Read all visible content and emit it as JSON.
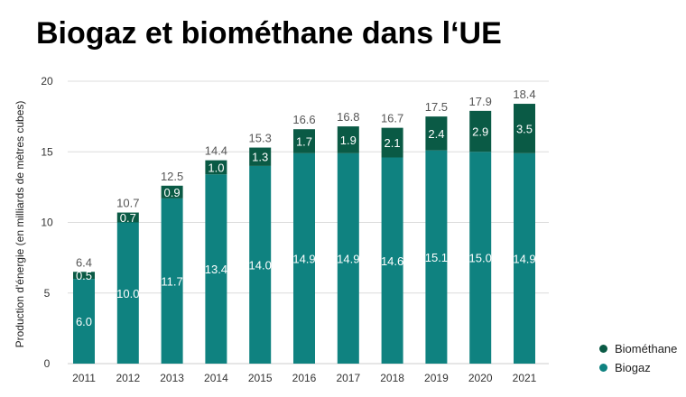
{
  "title": "Biogaz et biométhane dans l‘UE",
  "chart_data": {
    "type": "bar",
    "stacked": true,
    "categories": [
      "2011",
      "2012",
      "2013",
      "2014",
      "2015",
      "2016",
      "2017",
      "2018",
      "2019",
      "2020",
      "2021"
    ],
    "series": [
      {
        "name": "Biogaz",
        "color": "#0f8280",
        "values": [
          6.0,
          10.0,
          11.7,
          13.4,
          14.0,
          14.9,
          14.9,
          14.6,
          15.1,
          15.0,
          14.9
        ]
      },
      {
        "name": "Biométhane",
        "color": "#0a5a45",
        "values": [
          0.5,
          0.7,
          0.9,
          1.0,
          1.3,
          1.7,
          1.9,
          2.1,
          2.4,
          2.9,
          3.5
        ]
      }
    ],
    "totals": [
      6.4,
      10.7,
      12.5,
      14.4,
      15.3,
      16.6,
      16.8,
      16.7,
      17.5,
      17.9,
      18.4
    ],
    "ylabel": "Production d'énergie (en milliards de mètres cubes)",
    "xlabel": "",
    "ylim": [
      0,
      20
    ],
    "yticks": [
      0,
      5,
      10,
      15,
      20
    ],
    "grid": true,
    "legend_position": "bottom-right"
  },
  "legend": [
    {
      "label": "Biométhane",
      "color": "#0a5a45"
    },
    {
      "label": "Biogaz",
      "color": "#0f8280"
    }
  ]
}
